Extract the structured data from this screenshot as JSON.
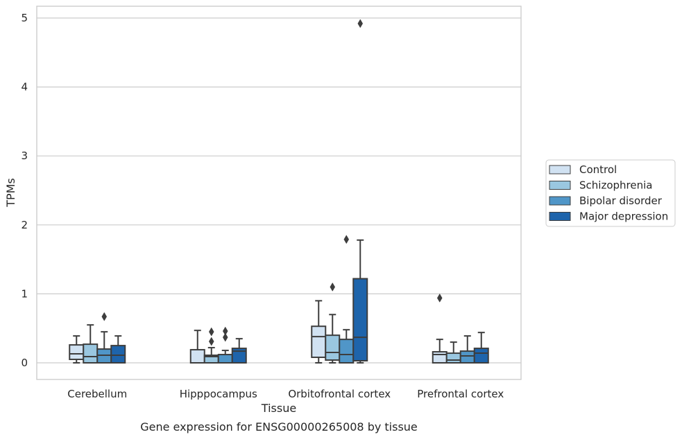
{
  "chart_data": {
    "type": "box",
    "title": "",
    "caption": "Gene expression for ENSG00000265008 by tissue",
    "xlabel": "Tissue",
    "ylabel": "TPMs",
    "ylim": [
      -0.24,
      5.18
    ],
    "yticks": [
      0,
      1,
      2,
      3,
      4,
      5
    ],
    "grid": "horizontal",
    "legend_position": "right",
    "categories": [
      "Cerebellum",
      "Hipppocampus",
      "Orbitofrontal cortex",
      "Prefrontal cortex"
    ],
    "series": [
      {
        "name": "Control",
        "color": "#d1e2f2",
        "boxes": [
          {
            "whisker_low": 0.0,
            "q1": 0.05,
            "median": 0.13,
            "q3": 0.26,
            "whisker_high": 0.39,
            "outliers": []
          },
          {
            "whisker_low": 0.0,
            "q1": 0.0,
            "median": 0.0,
            "q3": 0.19,
            "whisker_high": 0.47,
            "outliers": []
          },
          {
            "whisker_low": 0.0,
            "q1": 0.08,
            "median": 0.38,
            "q3": 0.53,
            "whisker_high": 0.9,
            "outliers": []
          },
          {
            "whisker_low": 0.0,
            "q1": 0.0,
            "median": 0.12,
            "q3": 0.16,
            "whisker_high": 0.34,
            "outliers": [
              0.94
            ]
          }
        ]
      },
      {
        "name": "Schizophrenia",
        "color": "#9ac7e0",
        "boxes": [
          {
            "whisker_low": 0.0,
            "q1": 0.0,
            "median": 0.09,
            "q3": 0.27,
            "whisker_high": 0.55,
            "outliers": []
          },
          {
            "whisker_low": 0.0,
            "q1": 0.0,
            "median": 0.09,
            "q3": 0.11,
            "whisker_high": 0.22,
            "outliers": [
              0.31,
              0.45
            ]
          },
          {
            "whisker_low": 0.0,
            "q1": 0.04,
            "median": 0.15,
            "q3": 0.4,
            "whisker_high": 0.7,
            "outliers": [
              1.1
            ]
          },
          {
            "whisker_low": 0.0,
            "q1": 0.0,
            "median": 0.04,
            "q3": 0.14,
            "whisker_high": 0.3,
            "outliers": []
          }
        ]
      },
      {
        "name": "Bipolar disorder",
        "color": "#5096c8",
        "boxes": [
          {
            "whisker_low": 0.0,
            "q1": 0.0,
            "median": 0.11,
            "q3": 0.2,
            "whisker_high": 0.45,
            "outliers": [
              0.67
            ]
          },
          {
            "whisker_low": 0.0,
            "q1": 0.0,
            "median": 0.0,
            "q3": 0.12,
            "whisker_high": 0.18,
            "outliers": [
              0.37,
              0.46
            ]
          },
          {
            "whisker_low": 0.0,
            "q1": 0.0,
            "median": 0.12,
            "q3": 0.34,
            "whisker_high": 0.48,
            "outliers": [
              1.79
            ]
          },
          {
            "whisker_low": 0.0,
            "q1": 0.0,
            "median": 0.1,
            "q3": 0.17,
            "whisker_high": 0.39,
            "outliers": []
          }
        ]
      },
      {
        "name": "Major depression",
        "color": "#1e64ab",
        "boxes": [
          {
            "whisker_low": 0.0,
            "q1": 0.0,
            "median": 0.11,
            "q3": 0.25,
            "whisker_high": 0.39,
            "outliers": []
          },
          {
            "whisker_low": 0.0,
            "q1": 0.0,
            "median": 0.17,
            "q3": 0.21,
            "whisker_high": 0.35,
            "outliers": []
          },
          {
            "whisker_low": 0.0,
            "q1": 0.03,
            "median": 0.37,
            "q3": 1.22,
            "whisker_high": 1.78,
            "outliers": [
              4.92
            ]
          },
          {
            "whisker_low": 0.0,
            "q1": 0.0,
            "median": 0.14,
            "q3": 0.21,
            "whisker_high": 0.44,
            "outliers": []
          }
        ]
      }
    ]
  }
}
